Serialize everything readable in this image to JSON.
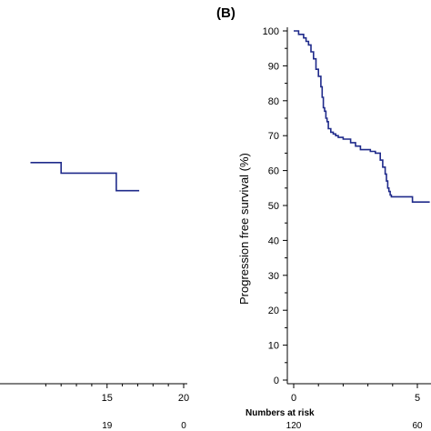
{
  "chart_data": [
    {
      "type": "line",
      "panel_label": "",
      "xlabel": "",
      "ylabel": "",
      "x_ticks": [
        15,
        20
      ],
      "xlim": [
        10,
        20.5
      ],
      "ylim": [
        0,
        100
      ],
      "series": [
        {
          "color": "#1f2a8a",
          "x": [
            10,
            12.0,
            12.0,
            15.6,
            15.6,
            17.1
          ],
          "y": [
            63,
            63,
            60,
            60,
            55,
            55
          ]
        }
      ],
      "risk_values": [
        {
          "x": 15,
          "label": "19"
        },
        {
          "x": 20,
          "label": "0"
        }
      ]
    },
    {
      "type": "line",
      "panel_label": "(B)",
      "ylabel": "Progression free survival  (%)",
      "xlabel": "",
      "y_ticks": [
        0,
        10,
        20,
        30,
        40,
        50,
        60,
        70,
        80,
        90,
        100
      ],
      "x_ticks": [
        0,
        5
      ],
      "ylim": [
        0,
        100
      ],
      "xlim": [
        0,
        5.5
      ],
      "risk_title": "Numbers at risk",
      "risk_values": [
        {
          "x": 0,
          "label": "120"
        },
        {
          "x": 5,
          "label": "60"
        }
      ],
      "series": [
        {
          "color": "#1f2a8a",
          "x": [
            0,
            0.2,
            0.2,
            0.4,
            0.4,
            0.5,
            0.5,
            0.6,
            0.6,
            0.7,
            0.7,
            0.8,
            0.8,
            0.9,
            0.9,
            1.0,
            1.0,
            1.1,
            1.1,
            1.15,
            1.15,
            1.2,
            1.2,
            1.25,
            1.25,
            1.3,
            1.3,
            1.35,
            1.35,
            1.4,
            1.4,
            1.5,
            1.5,
            1.6,
            1.6,
            1.7,
            1.7,
            1.8,
            1.8,
            2.0,
            2.0,
            2.3,
            2.3,
            2.5,
            2.5,
            2.7,
            2.7,
            2.9,
            2.9,
            3.1,
            3.1,
            3.3,
            3.3,
            3.5,
            3.5,
            3.6,
            3.6,
            3.7,
            3.7,
            3.75,
            3.75,
            3.8,
            3.8,
            3.85,
            3.85,
            3.9,
            3.9,
            3.95,
            3.95,
            4.0,
            4.0,
            4.5,
            4.5,
            4.8,
            4.8,
            5.0,
            5.0,
            5.3,
            5.3,
            5.5
          ],
          "y": [
            100,
            100,
            99,
            99,
            98,
            98,
            97,
            97,
            96,
            96,
            94,
            94,
            92,
            92,
            89,
            89,
            87,
            87,
            84,
            84,
            81,
            81,
            78,
            78,
            77,
            77,
            75,
            75,
            74,
            74,
            72,
            72,
            71,
            71,
            70.5,
            70.5,
            70,
            70,
            69.5,
            69.5,
            69,
            69,
            68,
            68,
            67,
            67,
            66,
            66,
            66,
            66,
            65.5,
            65.5,
            65,
            65,
            63,
            63,
            61,
            61,
            59,
            59,
            57,
            57,
            55,
            55,
            54,
            54,
            53,
            53,
            52.5,
            52.5,
            52.5,
            52.5,
            52.5,
            52.5,
            51,
            51,
            51,
            51,
            51,
            51
          ]
        }
      ]
    }
  ]
}
